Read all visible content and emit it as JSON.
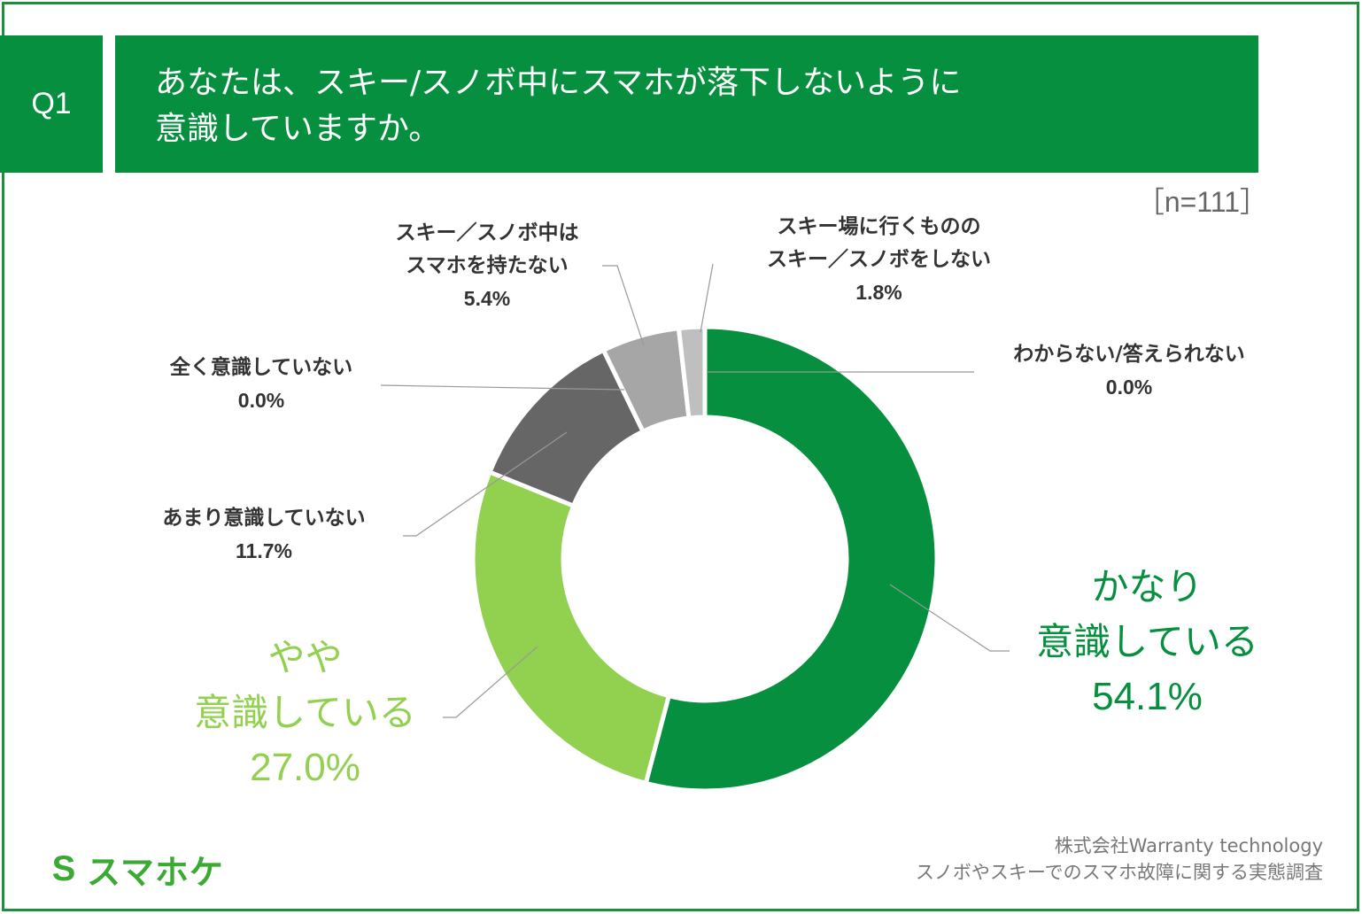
{
  "header": {
    "badge": "Q1",
    "title_line1": "あなたは、スキー/スノボ中にスマホが落下しないように",
    "title_line2": "意識していますか。"
  },
  "sample_size": "［n=111］",
  "colors": {
    "frame": "#1f8f3f",
    "header_bg": "#058f3e",
    "very_conscious": "#058f3e",
    "somewhat_conscious": "#92d050",
    "not_very": "#666666",
    "no_phone": "#a6a6a6",
    "no_ski": "#bfbfbf"
  },
  "chart_data": {
    "type": "pie",
    "donut": true,
    "n": 111,
    "slices": [
      {
        "label": "かなり意識している",
        "value": 54.1,
        "color": "#058f3e"
      },
      {
        "label": "やや意識している",
        "value": 27.0,
        "color": "#92d050"
      },
      {
        "label": "あまり意識していない",
        "value": 11.7,
        "color": "#666666"
      },
      {
        "label": "全く意識していない",
        "value": 0.0,
        "color": "#404040"
      },
      {
        "label": "スキー／スノボ中はスマホを持たない",
        "value": 5.4,
        "color": "#a6a6a6"
      },
      {
        "label": "スキー場に行くもののスキー／スノボをしない",
        "value": 1.8,
        "color": "#bfbfbf"
      },
      {
        "label": "わからない/答えられない",
        "value": 0.0,
        "color": "#d9d9d9"
      }
    ]
  },
  "labels": {
    "very": {
      "line1": "かなり",
      "line2": "意識している",
      "pct": "54.1%"
    },
    "somewhat": {
      "line1": "やや",
      "line2": "意識している",
      "pct": "27.0%"
    },
    "not_very": {
      "line1": "あまり意識していない",
      "pct": "11.7%"
    },
    "not_at_all": {
      "line1": "全く意識していない",
      "pct": "0.0%"
    },
    "no_phone": {
      "line1": "スキー／スノボ中は",
      "line2": "スマホを持たない",
      "pct": "5.4%"
    },
    "no_ski": {
      "line1": "スキー場に行くものの",
      "line2": "スキー／スノボをしない",
      "pct": "1.8%"
    },
    "dont_know": {
      "line1": "わからない/答えられない",
      "pct": "0.0%"
    }
  },
  "credit": {
    "line1": "株式会社Warranty technology",
    "line2": "スノボやスキーでのスマホ故障に関する実態調査"
  },
  "logo": {
    "mark": "S",
    "text": "スマホケ"
  }
}
